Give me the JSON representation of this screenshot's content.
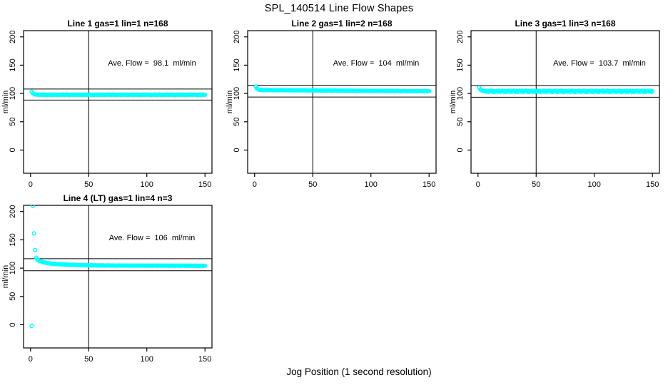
{
  "main_title": "SPL_140514  Line Flow Shapes",
  "x_axis_label": "Jog Position (1 second resolution)",
  "chart_data": {
    "type": "scatter",
    "title": "SPL_140514  Line Flow Shapes",
    "xlabel": "Jog Position (1 second resolution)",
    "ylabel": "ml/min",
    "marker": {
      "shape": "open-circle",
      "color": "#00FFFF"
    },
    "axis_color": "#000000",
    "x_ticks": [
      0,
      50,
      100,
      150
    ],
    "y_ticks": [
      0,
      50,
      100,
      150,
      200
    ],
    "xlim": [
      -6,
      156
    ],
    "ylim": [
      -41,
      211
    ],
    "vline_x": 50,
    "grid": false,
    "legend": "none",
    "panels": [
      {
        "title": "Line 1 gas=1 lin=1 n=168",
        "annotation": "Ave. Flow =  98.1  ml/min",
        "ave_flow": 98.1,
        "ref_lines": [
          88.3,
          107.9
        ],
        "x_start": 1,
        "x_step": 1,
        "y": [
          103.2,
          100.3,
          99.0,
          98.3,
          97.9,
          98.0,
          97.5,
          98.1,
          97.3,
          97.8,
          98.2,
          97.4,
          97.9,
          97.2,
          97.7,
          98.0,
          97.5,
          98.1,
          97.3,
          97.8,
          98.2,
          97.4,
          97.9,
          97.2,
          97.7,
          98.0,
          97.5,
          98.1,
          97.3,
          97.8,
          98.2,
          97.4,
          97.9,
          97.2,
          97.7,
          98.0,
          97.5,
          98.1,
          97.3,
          97.8,
          98.2,
          97.4,
          97.9,
          97.2,
          97.7,
          98.0,
          97.5,
          98.1,
          97.3,
          97.8,
          98.2,
          97.4,
          97.9,
          97.2,
          97.7,
          98.0,
          97.5,
          98.1,
          97.3,
          97.8,
          98.2,
          97.4,
          97.9,
          97.2,
          97.7,
          98.0,
          97.5,
          98.1,
          97.3,
          97.8,
          98.2,
          97.4,
          97.9,
          97.2,
          97.7,
          98.0,
          97.5,
          98.1,
          97.3,
          97.8,
          98.2,
          97.4,
          97.9,
          97.2,
          97.7,
          98.0,
          97.5,
          98.1,
          97.3,
          97.8,
          98.2,
          97.4,
          97.9,
          97.2,
          97.7,
          98.0,
          97.5,
          98.1,
          97.3,
          97.8,
          98.2,
          97.4,
          97.9,
          97.2,
          97.7,
          98.0,
          97.5,
          98.1,
          97.3,
          97.8,
          98.2,
          97.4,
          97.9,
          97.2,
          97.7,
          98.0,
          97.5,
          98.1,
          97.3,
          97.8,
          98.2,
          97.4,
          97.9,
          97.2,
          97.7,
          98.0,
          97.5,
          98.1,
          97.3,
          97.8,
          98.2,
          97.4,
          97.9,
          97.2,
          97.7,
          98.0,
          97.5,
          98.1,
          97.3,
          97.8,
          98.2,
          97.4,
          97.9,
          97.2,
          97.7,
          98.0,
          97.5,
          98.1,
          97.3,
          97.8
        ]
      },
      {
        "title": "Line 2 gas=1 lin=2 n=168",
        "annotation": "Ave. Flow =  104  ml/min",
        "ave_flow": 104,
        "ref_lines": [
          93.6,
          114.4
        ],
        "x_start": 1,
        "x_step": 1,
        "y": [
          112.2,
          108.8,
          107.3,
          106.5,
          106.1,
          106.1,
          106.0,
          105.9,
          106.0,
          106.1,
          105.9,
          106.0,
          106.1,
          106.0,
          105.9,
          105.9,
          105.8,
          105.8,
          105.9,
          105.8,
          105.7,
          105.8,
          105.9,
          105.8,
          105.7,
          105.7,
          105.6,
          105.7,
          105.8,
          105.7,
          105.6,
          105.6,
          105.7,
          105.6,
          105.5,
          105.6,
          105.5,
          105.5,
          105.6,
          105.5,
          105.4,
          105.5,
          105.6,
          105.5,
          105.4,
          105.4,
          105.3,
          105.4,
          105.5,
          105.4,
          105.3,
          105.3,
          105.4,
          105.3,
          105.2,
          105.3,
          105.2,
          105.2,
          105.3,
          105.2,
          105.1,
          105.2,
          105.3,
          105.2,
          105.1,
          105.1,
          105.0,
          105.1,
          105.2,
          105.1,
          105.0,
          105.0,
          105.1,
          105.0,
          104.9,
          105.0,
          104.9,
          104.9,
          105.0,
          104.9,
          104.8,
          104.9,
          105.0,
          104.9,
          104.8,
          104.8,
          104.7,
          104.8,
          104.9,
          104.8,
          104.7,
          104.7,
          104.8,
          104.7,
          104.6,
          104.7,
          104.6,
          104.6,
          104.7,
          104.6,
          104.5,
          104.6,
          104.7,
          104.6,
          104.5,
          104.5,
          104.4,
          104.5,
          104.6,
          104.5,
          104.4,
          104.4,
          104.5,
          104.4,
          104.3,
          104.4,
          104.3,
          104.3,
          104.4,
          104.3,
          104.2,
          104.3,
          104.4,
          104.3,
          104.2,
          104.3,
          104.2,
          104.3,
          104.4,
          104.3,
          104.2,
          104.2,
          104.3,
          104.2,
          104.1,
          104.2,
          104.1,
          104.2,
          104.3,
          104.2,
          104.1,
          104.2,
          104.3,
          104.2,
          104.1,
          104.2,
          104.1,
          104.2,
          104.2,
          104.1
        ]
      },
      {
        "title": "Line 3 gas=1 lin=3 n=168",
        "annotation": "Ave. Flow =  103.7  ml/min",
        "ave_flow": 103.7,
        "ref_lines": [
          93.3,
          114.1
        ],
        "x_start": 1,
        "x_step": 1,
        "y": [
          110.4,
          107.0,
          105.6,
          104.9,
          104.5,
          104.6,
          103.1,
          104.9,
          102.9,
          104.0,
          105.0,
          103.0,
          104.4,
          102.7,
          103.8,
          104.6,
          103.1,
          104.9,
          102.9,
          104.0,
          105.0,
          103.0,
          104.4,
          102.7,
          103.8,
          104.6,
          103.1,
          104.9,
          102.9,
          104.0,
          105.0,
          103.0,
          104.4,
          102.7,
          103.8,
          104.6,
          103.1,
          104.9,
          102.9,
          104.0,
          105.0,
          103.0,
          104.4,
          102.7,
          103.8,
          104.6,
          103.1,
          104.9,
          102.9,
          104.0,
          105.0,
          103.0,
          104.4,
          102.7,
          103.8,
          104.6,
          103.1,
          104.9,
          102.9,
          104.0,
          105.0,
          103.0,
          104.4,
          102.7,
          103.8,
          104.6,
          103.1,
          104.9,
          102.9,
          104.0,
          105.0,
          103.0,
          104.4,
          102.7,
          103.8,
          104.6,
          103.1,
          104.9,
          102.9,
          104.0,
          105.0,
          103.0,
          104.4,
          102.7,
          103.8,
          104.6,
          103.1,
          104.9,
          102.9,
          104.0,
          105.0,
          103.0,
          104.4,
          102.7,
          103.8,
          104.6,
          103.1,
          104.9,
          102.9,
          104.0,
          105.0,
          103.0,
          104.4,
          102.7,
          103.8,
          104.6,
          103.1,
          104.9,
          102.9,
          104.0,
          105.0,
          103.0,
          104.4,
          102.7,
          103.8,
          104.6,
          103.1,
          104.9,
          102.9,
          104.0,
          105.0,
          103.0,
          104.4,
          102.7,
          103.8,
          104.6,
          103.1,
          104.9,
          102.9,
          104.0,
          105.0,
          103.0,
          104.4,
          102.7,
          103.8,
          104.6,
          103.1,
          104.9,
          102.9,
          104.0,
          105.0,
          103.0,
          104.4,
          102.7,
          103.8,
          104.6,
          103.1,
          104.9,
          102.9,
          104.0
        ]
      },
      {
        "title": "Line 4 (LT) gas=1 lin=4 n=3",
        "annotation": "Ave. Flow =  106  ml/min",
        "ave_flow": 106,
        "ref_lines": [
          95.4,
          116.6
        ],
        "x_start": 1,
        "x_step": 1,
        "y": [
          -2.0,
          210.0,
          161.5,
          132.0,
          118.5,
          114.8,
          113.6,
          112.7,
          111.9,
          111.2,
          110.6,
          110.1,
          109.6,
          109.2,
          108.8,
          108.5,
          108.2,
          107.9,
          107.6,
          107.4,
          107.3,
          106.9,
          107.2,
          106.7,
          107.0,
          106.9,
          106.5,
          106.8,
          106.3,
          106.5,
          106.4,
          106.0,
          106.3,
          105.8,
          106.1,
          106.2,
          105.7,
          106.0,
          105.5,
          105.8,
          105.7,
          105.3,
          105.6,
          105.2,
          105.4,
          105.6,
          105.1,
          105.4,
          105.0,
          105.2,
          105.2,
          104.8,
          105.1,
          104.7,
          104.9,
          105.1,
          104.7,
          105.0,
          104.6,
          104.8,
          104.9,
          104.6,
          104.9,
          104.5,
          104.7,
          104.9,
          104.5,
          104.8,
          104.4,
          104.6,
          104.8,
          104.4,
          104.7,
          104.3,
          104.5,
          104.8,
          104.4,
          104.7,
          104.3,
          104.5,
          104.7,
          104.3,
          104.6,
          104.2,
          104.4,
          104.7,
          104.3,
          104.6,
          104.2,
          104.4,
          104.6,
          104.3,
          104.6,
          104.2,
          104.4,
          104.6,
          104.2,
          104.5,
          104.1,
          104.3,
          104.6,
          104.2,
          104.5,
          104.1,
          104.3,
          104.6,
          104.2,
          104.5,
          104.1,
          104.3,
          104.5,
          104.2,
          104.5,
          104.1,
          104.3,
          104.5,
          104.1,
          104.4,
          104.0,
          104.2,
          104.5,
          104.1,
          104.4,
          104.0,
          104.2,
          104.5,
          104.1,
          104.4,
          104.0,
          104.2,
          104.4,
          104.1,
          104.4,
          104.0,
          104.2,
          104.4,
          104.0,
          104.3,
          103.9,
          104.1,
          104.4,
          104.0,
          104.3,
          103.9,
          104.1,
          104.4,
          104.0,
          104.3,
          104.0,
          104.2
        ]
      }
    ]
  }
}
